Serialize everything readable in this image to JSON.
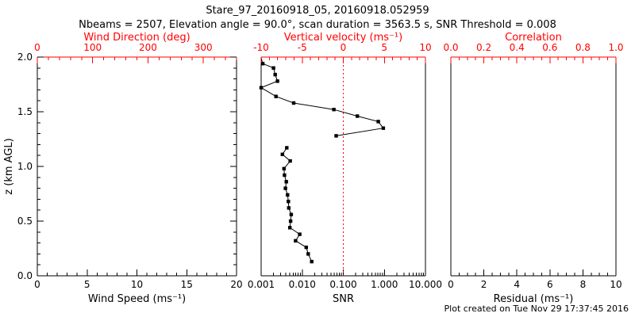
{
  "header": {
    "title": "Stare_97_20160918_05, 20160918.052959",
    "subtitle": "Nbeams = 2507, Elevation angle = 90.0°, scan duration = 3563.5 s, SNR Threshold = 0.008"
  },
  "footer": {
    "created": "Plot created on Tue Nov 29 17:37:45 2016"
  },
  "colors": {
    "background": "#ffffff",
    "axis": "#000000",
    "secondary_axis": "#ff0000",
    "data": "#000000",
    "zero_line": "#ff0000"
  },
  "y_axis": {
    "label": "z (km AGL)",
    "range": [
      0,
      2
    ],
    "tick_values": [
      0,
      0.5,
      1,
      1.5,
      2
    ],
    "tick_labels": [
      "0.0",
      "0.5",
      "1.0",
      "1.5",
      "2.0"
    ],
    "minor_step": 0.1
  },
  "chart_data": [
    {
      "name": "wind-panel",
      "type": "line",
      "bottom_axis": {
        "label": "Wind Speed (ms⁻¹)",
        "scale": "linear",
        "range": [
          0,
          20
        ],
        "tick_values": [
          0,
          5,
          10,
          15,
          20
        ],
        "tick_labels": [
          "0",
          "5",
          "10",
          "15",
          "20"
        ],
        "minor_step": 1
      },
      "top_axis": {
        "label": "Wind Direction (deg)",
        "scale": "linear",
        "range": [
          0,
          360
        ],
        "tick_values": [
          0,
          100,
          200,
          300
        ],
        "tick_labels": [
          "0",
          "100",
          "200",
          "300"
        ],
        "minor_step": 20
      },
      "series": []
    },
    {
      "name": "snr-panel",
      "type": "line",
      "bottom_axis": {
        "label": "SNR",
        "scale": "log",
        "range": [
          0.001,
          10
        ],
        "tick_values": [
          0.001,
          0.01,
          0.1,
          1,
          10
        ],
        "tick_labels": [
          "0.001",
          "0.010",
          "0.100",
          "1.000",
          "10.000"
        ]
      },
      "top_axis": {
        "label": "Vertical velocity (ms⁻¹)",
        "scale": "linear",
        "range": [
          -10,
          10
        ],
        "tick_values": [
          -10,
          -5,
          0,
          5,
          10
        ],
        "tick_labels": [
          "-10",
          "-5",
          "0",
          "5",
          "10"
        ],
        "minor_step": 1
      },
      "zero_line": {
        "value": 0.1,
        "style": "dotted"
      },
      "series": [
        {
          "lead_in": {
            "x": 0.001,
            "z": 1.99
          },
          "points": [
            {
              "x": 0.0011,
              "z": 1.94
            },
            {
              "x": 0.002,
              "z": 1.9
            },
            {
              "x": 0.0022,
              "z": 1.84
            },
            {
              "x": 0.0025,
              "z": 1.78
            },
            {
              "x": 0.001,
              "z": 1.72
            },
            {
              "x": 0.0023,
              "z": 1.64
            },
            {
              "x": 0.0062,
              "z": 1.58
            },
            {
              "x": 0.059,
              "z": 1.52
            },
            {
              "x": 0.22,
              "z": 1.46
            },
            {
              "x": 0.71,
              "z": 1.41
            },
            {
              "x": 0.94,
              "z": 1.35
            },
            {
              "x": 0.067,
              "z": 1.28
            }
          ]
        },
        {
          "points": [
            {
              "x": 0.0042,
              "z": 1.17
            },
            {
              "x": 0.0033,
              "z": 1.11
            },
            {
              "x": 0.0051,
              "z": 1.05
            },
            {
              "x": 0.0036,
              "z": 0.98
            },
            {
              "x": 0.0037,
              "z": 0.92
            },
            {
              "x": 0.0041,
              "z": 0.86
            },
            {
              "x": 0.0039,
              "z": 0.8
            },
            {
              "x": 0.0044,
              "z": 0.74
            },
            {
              "x": 0.0046,
              "z": 0.68
            },
            {
              "x": 0.0047,
              "z": 0.62
            },
            {
              "x": 0.0054,
              "z": 0.56
            },
            {
              "x": 0.0052,
              "z": 0.5
            },
            {
              "x": 0.005,
              "z": 0.44
            },
            {
              "x": 0.0087,
              "z": 0.38
            },
            {
              "x": 0.0069,
              "z": 0.32
            },
            {
              "x": 0.0125,
              "z": 0.26
            },
            {
              "x": 0.014,
              "z": 0.2
            },
            {
              "x": 0.017,
              "z": 0.13
            }
          ]
        }
      ]
    },
    {
      "name": "residual-panel",
      "type": "line",
      "bottom_axis": {
        "label": "Residual (ms⁻¹)",
        "scale": "linear",
        "range": [
          0,
          10
        ],
        "tick_values": [
          0,
          2,
          4,
          6,
          8,
          10
        ],
        "tick_labels": [
          "0",
          "2",
          "4",
          "6",
          "8",
          "10"
        ],
        "minor_step": 0.5
      },
      "top_axis": {
        "label": "Correlation",
        "scale": "linear",
        "range": [
          0,
          1
        ],
        "tick_values": [
          0,
          0.2,
          0.4,
          0.6,
          0.8,
          1
        ],
        "tick_labels": [
          "0.0",
          "0.2",
          "0.4",
          "0.6",
          "0.8",
          "1.0"
        ],
        "minor_step": 0.05
      },
      "series": []
    }
  ]
}
